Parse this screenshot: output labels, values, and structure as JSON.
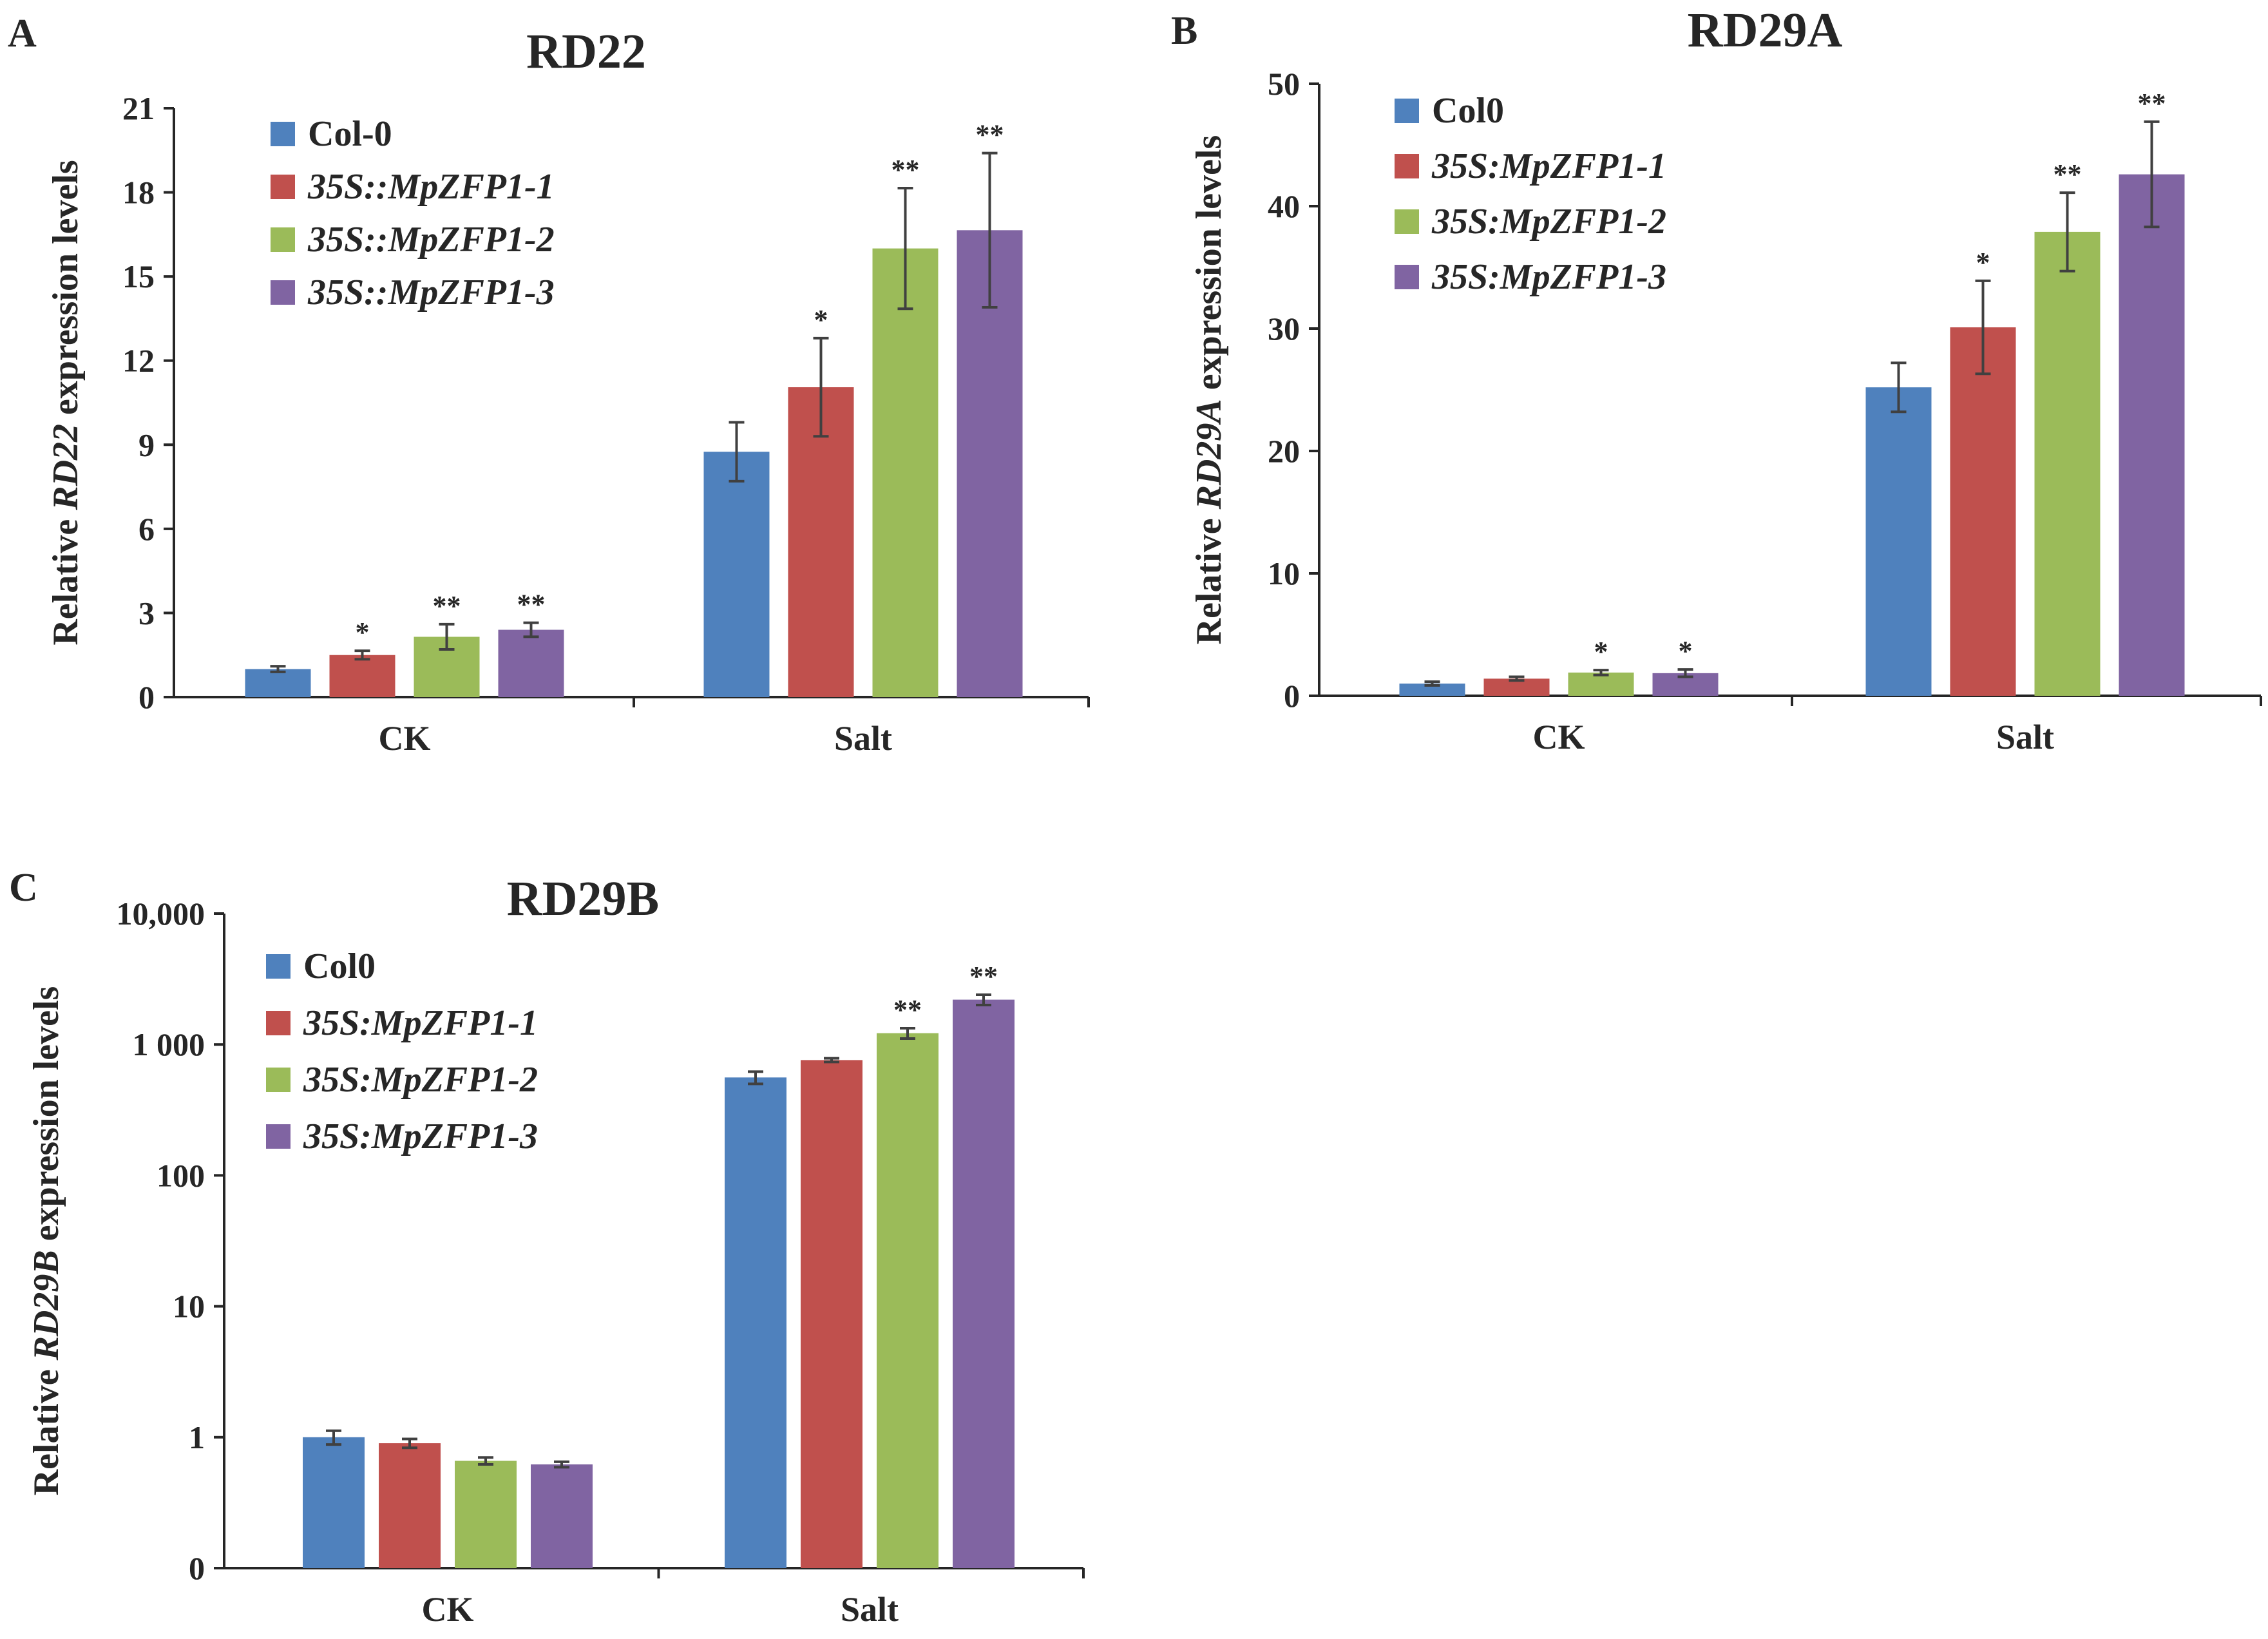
{
  "chart_data": [
    {
      "panel": "A",
      "type": "bar",
      "title": "RD22",
      "xlabel": "",
      "ylabel_parts": [
        {
          "text": "Relative ",
          "italic": false
        },
        {
          "text": "RD22",
          "italic": true
        },
        {
          "text": " expression levels",
          "italic": false
        }
      ],
      "scale": "linear",
      "ylim": [
        0,
        21
      ],
      "yticks": [
        0,
        3,
        6,
        9,
        12,
        15,
        18,
        21
      ],
      "ytick_labels": [
        "0",
        "3",
        "6",
        "9",
        "12",
        "15",
        "18",
        "21"
      ],
      "categories": [
        "CK",
        "Salt"
      ],
      "legend_position": "top-left",
      "series": [
        {
          "name": "Col-0",
          "italic": false,
          "color": "#4f81bd",
          "values": [
            1.0,
            8.75
          ],
          "errors": [
            0.1,
            1.05
          ],
          "significance": [
            "",
            ""
          ]
        },
        {
          "name": "35S::MpZFP1-1",
          "italic": true,
          "color": "#c0504d",
          "values": [
            1.5,
            11.05
          ],
          "errors": [
            0.15,
            1.75
          ],
          "significance": [
            "*",
            "*"
          ]
        },
        {
          "name": "35S::MpZFP1-2",
          "italic": true,
          "color": "#9bbb59",
          "values": [
            2.15,
            16.0
          ],
          "errors": [
            0.45,
            2.15
          ],
          "significance": [
            "**",
            "**"
          ]
        },
        {
          "name": "35S::MpZFP1-3",
          "italic": true,
          "color": "#8064a2",
          "values": [
            2.4,
            16.65
          ],
          "errors": [
            0.25,
            2.75
          ],
          "significance": [
            "**",
            "**"
          ]
        }
      ]
    },
    {
      "panel": "B",
      "type": "bar",
      "title": "RD29A",
      "xlabel": "",
      "ylabel_parts": [
        {
          "text": "Relative ",
          "italic": false
        },
        {
          "text": "RD29A",
          "italic": true
        },
        {
          "text": " expression levels",
          "italic": false
        }
      ],
      "scale": "linear",
      "ylim": [
        0,
        50
      ],
      "yticks": [
        0,
        10,
        20,
        30,
        40,
        50
      ],
      "ytick_labels": [
        "0",
        "10",
        "20",
        "30",
        "40",
        "50"
      ],
      "categories": [
        "CK",
        "Salt"
      ],
      "legend_position": "top-left",
      "series": [
        {
          "name": "Col0",
          "italic": false,
          "color": "#4f81bd",
          "values": [
            1.0,
            25.2
          ],
          "errors": [
            0.15,
            2.0
          ],
          "significance": [
            "",
            ""
          ]
        },
        {
          "name": "35S:MpZFP1-1",
          "italic": true,
          "color": "#c0504d",
          "values": [
            1.4,
            30.1
          ],
          "errors": [
            0.15,
            3.8
          ],
          "significance": [
            "",
            "*"
          ]
        },
        {
          "name": "35S:MpZFP1-2",
          "italic": true,
          "color": "#9bbb59",
          "values": [
            1.9,
            37.9
          ],
          "errors": [
            0.2,
            3.2
          ],
          "significance": [
            "*",
            "**"
          ]
        },
        {
          "name": "35S:MpZFP1-3",
          "italic": true,
          "color": "#8064a2",
          "values": [
            1.85,
            42.6
          ],
          "errors": [
            0.3,
            4.3
          ],
          "significance": [
            "*",
            "**"
          ]
        }
      ]
    },
    {
      "panel": "C",
      "type": "bar",
      "title": "RD29B",
      "xlabel": "",
      "ylabel_parts": [
        {
          "text": "Relative ",
          "italic": false
        },
        {
          "text": "RD29B",
          "italic": true
        },
        {
          "text": " expression levels",
          "italic": false
        }
      ],
      "scale": "log",
      "ylim": [
        0.1,
        10000
      ],
      "yticks": [
        0.1,
        1,
        10,
        100,
        1000,
        10000
      ],
      "ytick_labels": [
        "0",
        "1",
        "10",
        "100",
        "1 000",
        "10,000"
      ],
      "categories": [
        "CK",
        "Salt"
      ],
      "legend_position": "top-left",
      "series": [
        {
          "name": "Col0",
          "italic": false,
          "color": "#4f81bd",
          "values": [
            1.0,
            560
          ],
          "errors": [
            0.12,
            60
          ],
          "significance": [
            "",
            ""
          ]
        },
        {
          "name": "35S:MpZFP1-1",
          "italic": true,
          "color": "#c0504d",
          "values": [
            0.9,
            760
          ],
          "errors": [
            0.07,
            25
          ],
          "significance": [
            "",
            ""
          ]
        },
        {
          "name": "35S:MpZFP1-2",
          "italic": true,
          "color": "#9bbb59",
          "values": [
            0.66,
            1220
          ],
          "errors": [
            0.04,
            110
          ],
          "significance": [
            "",
            "**"
          ]
        },
        {
          "name": "35S:MpZFP1-3",
          "italic": true,
          "color": "#8064a2",
          "values": [
            0.62,
            2200
          ],
          "errors": [
            0.03,
            200
          ],
          "significance": [
            "",
            "**"
          ]
        }
      ]
    }
  ]
}
